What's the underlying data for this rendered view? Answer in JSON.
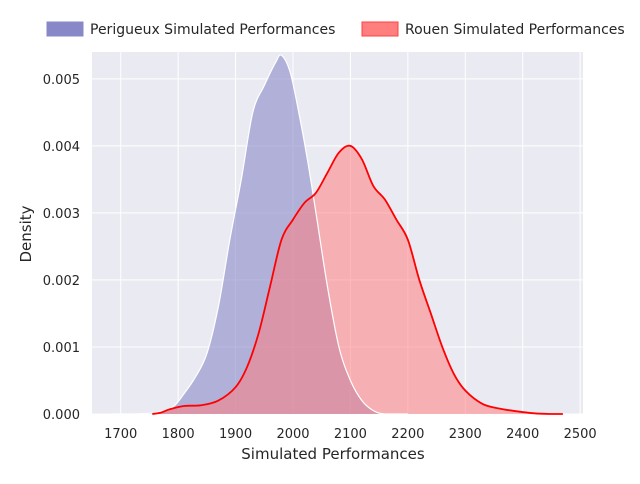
{
  "chart_data": {
    "type": "area",
    "title": "",
    "xlabel": "Simulated Performances",
    "ylabel": "Density",
    "xlim": [
      1650,
      2505
    ],
    "ylim": [
      0,
      0.0054
    ],
    "xticks": [
      1700,
      1800,
      1900,
      2000,
      2100,
      2200,
      2300,
      2400,
      2500
    ],
    "xtick_labels": [
      "1700",
      "1800",
      "1900",
      "2000",
      "2100",
      "2200",
      "2300",
      "2400",
      "2500"
    ],
    "yticks": [
      0,
      0.001,
      0.002,
      0.003,
      0.004,
      0.005
    ],
    "ytick_labels": [
      "0.000",
      "0.001",
      "0.002",
      "0.003",
      "0.004",
      "0.005"
    ],
    "grid": true,
    "legend_position": "top",
    "series": [
      {
        "name": "Perigueux Simulated Performances",
        "color": "#8888c8",
        "fill_opacity": 0.6,
        "line_color": "#ffffff",
        "points": [
          [
            1685,
            0.0
          ],
          [
            1720,
            0.0
          ],
          [
            1760,
            2e-05
          ],
          [
            1790,
            0.0001
          ],
          [
            1810,
            0.0003
          ],
          [
            1830,
            0.00055
          ],
          [
            1850,
            0.0009
          ],
          [
            1870,
            0.0016
          ],
          [
            1890,
            0.0026
          ],
          [
            1910,
            0.0035
          ],
          [
            1930,
            0.0045
          ],
          [
            1950,
            0.0049
          ],
          [
            1970,
            0.00525
          ],
          [
            1980,
            0.00535
          ],
          [
            1995,
            0.0051
          ],
          [
            2010,
            0.0045
          ],
          [
            2025,
            0.0038
          ],
          [
            2040,
            0.003
          ],
          [
            2060,
            0.0019
          ],
          [
            2080,
            0.001
          ],
          [
            2100,
            0.0005
          ],
          [
            2120,
            0.0002
          ],
          [
            2140,
            5e-05
          ],
          [
            2160,
            0.0
          ],
          [
            2200,
            0.0
          ]
        ]
      },
      {
        "name": "Rouen Simulated Performances",
        "color": "#ff7f7f",
        "fill_opacity": 0.55,
        "line_color": "#ff0000",
        "points": [
          [
            1755,
            0.0
          ],
          [
            1770,
            2e-05
          ],
          [
            1785,
            7e-05
          ],
          [
            1810,
            0.00012
          ],
          [
            1840,
            0.00013
          ],
          [
            1870,
            0.0002
          ],
          [
            1900,
            0.0004
          ],
          [
            1920,
            0.0007
          ],
          [
            1940,
            0.0012
          ],
          [
            1960,
            0.0019
          ],
          [
            1980,
            0.0026
          ],
          [
            2000,
            0.0029
          ],
          [
            2020,
            0.00315
          ],
          [
            2040,
            0.0033
          ],
          [
            2060,
            0.0036
          ],
          [
            2080,
            0.0039
          ],
          [
            2100,
            0.004
          ],
          [
            2120,
            0.0038
          ],
          [
            2140,
            0.0034
          ],
          [
            2160,
            0.0032
          ],
          [
            2180,
            0.0029
          ],
          [
            2200,
            0.0026
          ],
          [
            2220,
            0.002
          ],
          [
            2240,
            0.0015
          ],
          [
            2260,
            0.001
          ],
          [
            2280,
            0.0006
          ],
          [
            2300,
            0.00035
          ],
          [
            2330,
            0.00015
          ],
          [
            2360,
            8e-05
          ],
          [
            2390,
            4e-05
          ],
          [
            2420,
            1e-05
          ],
          [
            2450,
            0.0
          ],
          [
            2470,
            0.0
          ]
        ]
      }
    ]
  }
}
